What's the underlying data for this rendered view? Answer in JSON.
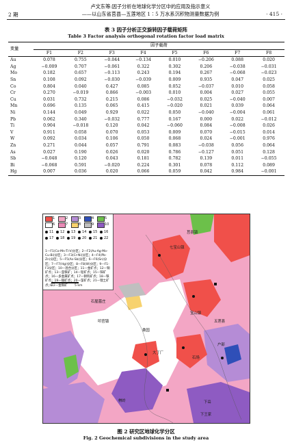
{
  "header": {
    "line1": "卢文东等:因子分析在地球化学分区中的应用及指示意义",
    "line2": "——以山东省莒县—五莲地区 1∶5 万水系沉积物测量数据为例",
    "issue": "2 期",
    "page": "· 415 ·"
  },
  "table": {
    "caption_zh": "表 3 因子分析正交旋转因子载荷矩阵",
    "caption_en": "Table 3 Factor analysis orthogonal rotation factor load matrix",
    "col_var": "变量",
    "group": "因子载荷",
    "factors": [
      "F1",
      "F2",
      "F3",
      "F4",
      "F5",
      "F6",
      "F7",
      "F8"
    ],
    "rows": [
      {
        "v": "Au",
        "f": [
          "0.078",
          "0.755",
          "−0.044",
          "−0.134",
          "0.010",
          "−0.206",
          "0.088",
          "0.020"
        ]
      },
      {
        "v": "Ag",
        "f": [
          "−0.009",
          "0.707",
          "−0.061",
          "0.322",
          "0.302",
          "0.206",
          "−0.038",
          "−0.031"
        ]
      },
      {
        "v": "Mo",
        "f": [
          "0.182",
          "0.657",
          "−0.113",
          "0.243",
          "0.194",
          "0.267",
          "−0.068",
          "−0.023"
        ]
      },
      {
        "v": "Sn",
        "f": [
          "0.108",
          "0.092",
          "−0.030",
          "−0.039",
          "0.009",
          "0.935",
          "0.047",
          "0.025"
        ]
      },
      {
        "v": "Co",
        "f": [
          "0.804",
          "0.040",
          "0.427",
          "0.085",
          "0.052",
          "−0.037",
          "0.010",
          "0.058"
        ]
      },
      {
        "v": "Cr",
        "f": [
          "0.270",
          "−0.019",
          "0.866",
          "−0.003",
          "0.010",
          "0.004",
          "0.027",
          "0.055"
        ]
      },
      {
        "v": "Cu",
        "f": [
          "0.031",
          "0.732",
          "0.215",
          "0.086",
          "−0.032",
          "0.025",
          "−0.040",
          "0.007"
        ]
      },
      {
        "v": "Mn",
        "f": [
          "0.696",
          "0.135",
          "0.065",
          "0.415",
          "−0.020",
          "0.021",
          "0.039",
          "0.064"
        ]
      },
      {
        "v": "Ni",
        "f": [
          "0.144",
          "0.049",
          "0.929",
          "0.022",
          "0.050",
          "−0.040",
          "−0.004",
          "0.061"
        ]
      },
      {
        "v": "Pb",
        "f": [
          "0.062",
          "0.340",
          "−0.032",
          "0.777",
          "0.167",
          "0.000",
          "0.022",
          "−0.012"
        ]
      },
      {
        "v": "Ti",
        "f": [
          "0.904",
          "−0.018",
          "0.120",
          "0.042",
          "−0.060",
          "0.084",
          "−0.008",
          "0.026"
        ]
      },
      {
        "v": "V",
        "f": [
          "0.911",
          "0.058",
          "0.070",
          "0.053",
          "0.009",
          "0.070",
          "−0.015",
          "0.014"
        ]
      },
      {
        "v": "W",
        "f": [
          "0.092",
          "0.034",
          "0.106",
          "0.050",
          "0.068",
          "0.024",
          "−0.001",
          "0.976"
        ]
      },
      {
        "v": "Zn",
        "f": [
          "0.271",
          "0.044",
          "0.057",
          "0.791",
          "0.083",
          "−0.038",
          "0.056",
          "0.064"
        ]
      },
      {
        "v": "As",
        "f": [
          "0.027",
          "0.190",
          "0.026",
          "0.020",
          "0.786",
          "−0.127",
          "0.051",
          "0.128"
        ]
      },
      {
        "v": "Sb",
        "f": [
          "−0.048",
          "0.120",
          "0.043",
          "0.181",
          "0.782",
          "0.139",
          "0.011",
          "−0.055"
        ]
      },
      {
        "v": "Bi",
        "f": [
          "−0.068",
          "0.591",
          "−0.020",
          "0.224",
          "0.301",
          "0.078",
          "0.112",
          "0.089"
        ]
      },
      {
        "v": "Hg",
        "f": [
          "0.007",
          "0.036",
          "0.020",
          "0.066",
          "0.059",
          "0.042",
          "0.984",
          "−0.001"
        ]
      }
    ]
  },
  "map": {
    "legend_swatches": [
      {
        "n": "1",
        "color": "#f0504a"
      },
      {
        "n": "2",
        "color": "#f3a6c5"
      },
      {
        "n": "3",
        "color": "#b58cd6"
      },
      {
        "n": "4",
        "color": "#2f4fb8"
      },
      {
        "n": "5",
        "color": "#6cc04a"
      },
      {
        "n": "6",
        "color": "#ffffff"
      },
      {
        "n": "7",
        "color": "#e98ab6"
      },
      {
        "n": "8",
        "color": "#f7d26e"
      },
      {
        "n": "9",
        "color": "#bfbfbf"
      },
      {
        "n": "10",
        "color": "#8e5bc2"
      }
    ],
    "legend_points": [
      "11",
      "12",
      "13",
      "14",
      "15",
      "16",
      "17",
      "18",
      "19",
      "20",
      "21",
      "22"
    ],
    "legend_desc": "1—F1(Co-Mn-Ti-V)分区；2—F2(Au-Ag-Mo-Cu-Bi)分区；3—F3(Cr-Ni)分区；4—F4(Pb-Zn)分区；5—F5(As-Sb)分区；6—F6(Sn)分区；7—F7(Hg)分区；8—F8(W)分区；9—F1-F3分区；10—混合分区；11—金矿点；12—铜矿点；13—萤铁矿；14—铅矿点；15—锌矿点；16—多金属矿点；17—钼钨矿点；18—铁矿点；19—银矿点；20—萤矿点；21—锂土矿点；22—金铜矿",
    "scale_zero": "0",
    "scale_five": "5 km",
    "places": [
      "莒县镇",
      "七宝山镇",
      "石屋墓庄",
      "叩官镇",
      "宝山镇",
      "五莲县",
      "桑园",
      "大丁厂",
      "户部",
      "石场",
      "棋岭",
      "下岳",
      "下王家"
    ]
  },
  "figure": {
    "caption_zh": "图 2 研究区地球化学分区",
    "caption_en": "Fig. 2 Geochemical subdivisions in the study area"
  }
}
